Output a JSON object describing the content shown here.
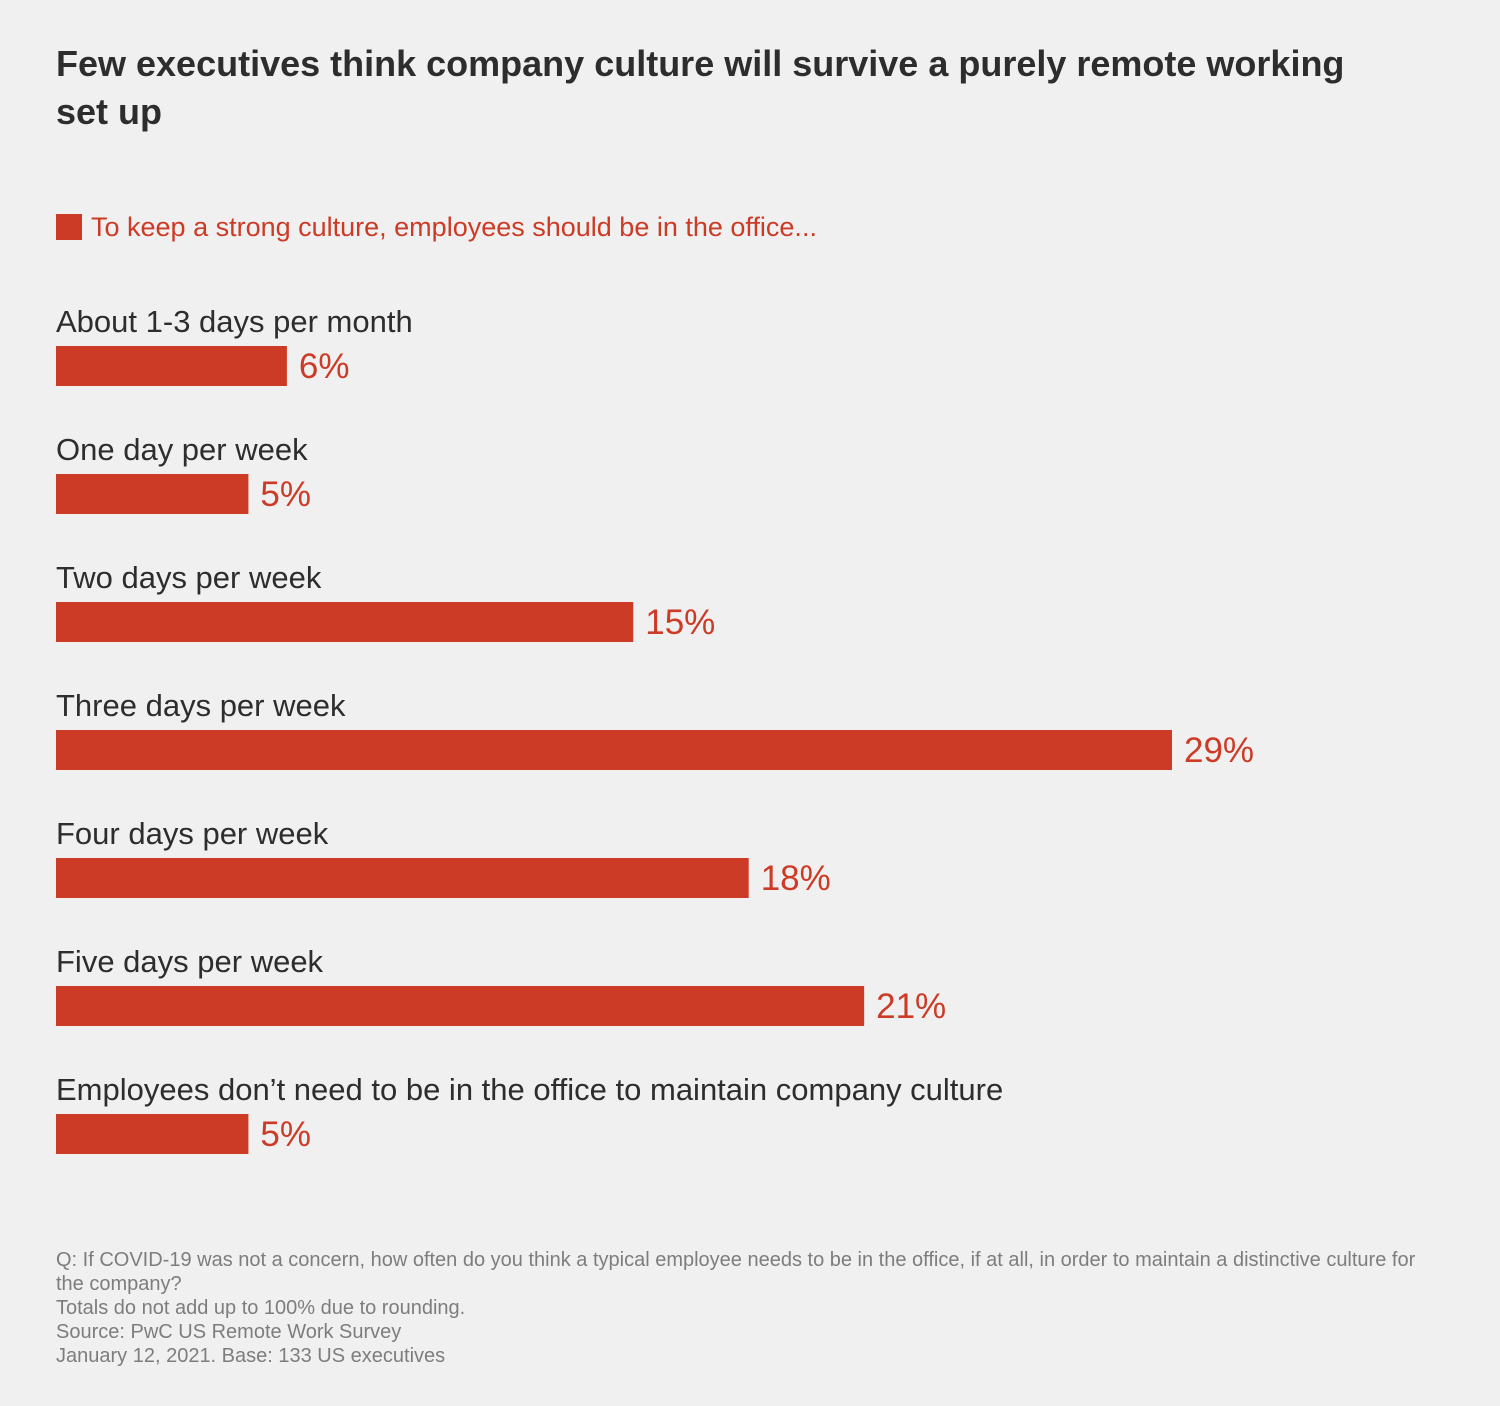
{
  "colors": {
    "accent": "#cc3b26",
    "text": "#2d2d2d",
    "notes": "#7d7d7d",
    "background": "#f0f0f0"
  },
  "legend": {
    "label": "To keep a strong culture, employees should be in the office..."
  },
  "chart_data": {
    "type": "bar",
    "orientation": "horizontal",
    "title": "Few executives think company culture will survive a purely remote working set up",
    "categories": [
      "About 1-3 days per month",
      "One day per week",
      "Two days per week",
      "Three days per week",
      "Four days per week",
      "Five days per week",
      "Employees don’t need to be in the office to maintain company culture"
    ],
    "series": [
      {
        "name": "To keep a strong culture, employees should be in the office...",
        "values": [
          6,
          5,
          15,
          29,
          18,
          21,
          5
        ]
      }
    ],
    "value_labels": [
      "6%",
      "5%",
      "15%",
      "29%",
      "18%",
      "21%",
      "5%"
    ],
    "xlim": [
      0,
      29
    ],
    "unit": "%",
    "grid": false,
    "legend_position": "top-left"
  },
  "notes": {
    "question": "Q: If COVID-19 was not a concern, how often do you think a typical employee needs to be in the office, if at all, in order to maintain a distinctive culture for the company?",
    "rounding": "Totals do not add up to 100% due to rounding.",
    "source": "Source: PwC US Remote Work Survey",
    "base": "January 12, 2021. Base: 133 US executives"
  }
}
